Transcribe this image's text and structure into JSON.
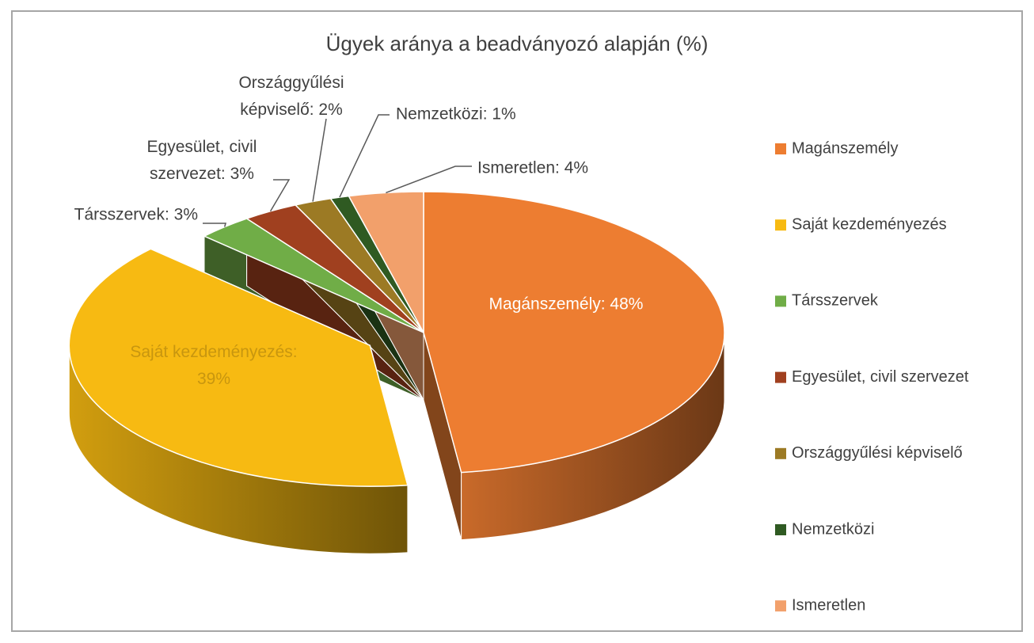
{
  "chart_data": {
    "type": "pie3d",
    "title": "Ügyek aránya a beadványozó alapján (%)",
    "categories": [
      "Magánszemély",
      "Saját kezdeményezés",
      "Társszervek",
      "Egyesület, civil szervezet",
      "Országgyűlési képviselő",
      "Nemzetközi",
      "Ismeretlen"
    ],
    "values": [
      48,
      39,
      3,
      3,
      2,
      1,
      4
    ],
    "value_labels": [
      "Magánszemély: 48%",
      "Saját kezdeményezés:\n39%",
      "Társszervek:  3%",
      "Egyesület, civil\nszervezet:  3%",
      "Országgyűlési\nképviselő: 2%",
      "Nemzetközi:  1%",
      "Ismeretlen: 4%"
    ],
    "colors": [
      "#ED7D31",
      "#F7BA12",
      "#70AD47",
      "#A0401F",
      "#9C7A24",
      "#2F5A22",
      "#F2A06B"
    ],
    "legend": "right"
  }
}
